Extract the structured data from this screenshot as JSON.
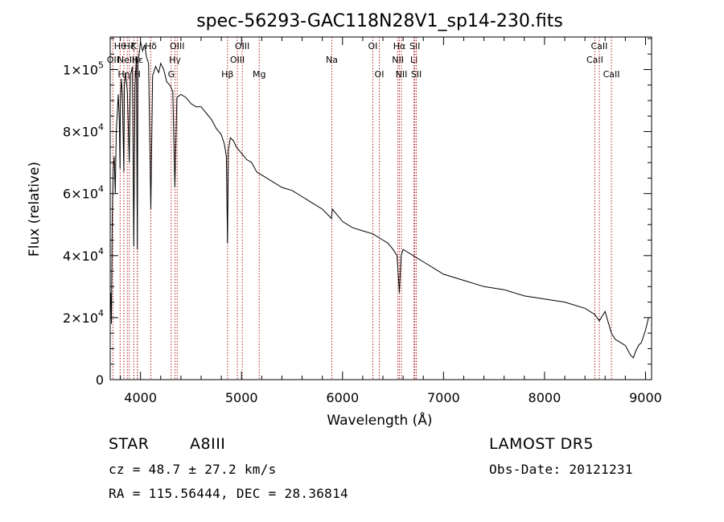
{
  "chart_data": {
    "type": "line",
    "title": "spec-56293-GAC118N28V1_sp14-230.fits",
    "xlabel": "Wavelength (Å)",
    "ylabel": "Flux (relative)",
    "xlim": [
      3700,
      9060
    ],
    "ylim": [
      0,
      110500
    ],
    "xticks": [
      {
        "value": 4000,
        "label": "4000"
      },
      {
        "value": 5000,
        "label": "5000"
      },
      {
        "value": 6000,
        "label": "6000"
      },
      {
        "value": 7000,
        "label": "7000"
      },
      {
        "value": 8000,
        "label": "8000"
      },
      {
        "value": 9000,
        "label": "9000"
      }
    ],
    "yticks": [
      {
        "value": 0,
        "mant": "0",
        "exp": ""
      },
      {
        "value": 20000,
        "mant": "2×10",
        "exp": "4"
      },
      {
        "value": 40000,
        "mant": "4×10",
        "exp": "4"
      },
      {
        "value": 60000,
        "mant": "6×10",
        "exp": "4"
      },
      {
        "value": 80000,
        "mant": "8×10",
        "exp": "4"
      },
      {
        "value": 100000,
        "mant": "1×10",
        "exp": "5"
      }
    ],
    "line_color": "#000000",
    "marker_color": "#b22222",
    "series": [
      {
        "x": [
          3705,
          3712,
          3720,
          3730,
          3740,
          3750,
          3760,
          3770,
          3780,
          3790,
          3797,
          3800,
          3810,
          3820,
          3835,
          3840,
          3850,
          3870,
          3889,
          3900,
          3920,
          3933,
          3945,
          3960,
          3968,
          3975,
          3990,
          4000,
          4020,
          4040,
          4060,
          4080,
          4102,
          4120,
          4150,
          4180,
          4200,
          4230,
          4260,
          4290,
          4320,
          4340,
          4360,
          4400,
          4450,
          4500,
          4550,
          4600,
          4650,
          4700,
          4750,
          4800,
          4830,
          4850,
          4861,
          4870,
          4890,
          4920,
          4950,
          5000,
          5050,
          5100,
          5150,
          5200,
          5300,
          5400,
          5500,
          5600,
          5700,
          5800,
          5890,
          5900,
          6000,
          6100,
          6200,
          6300,
          6400,
          6450,
          6500,
          6540,
          6563,
          6580,
          6600,
          6700,
          6800,
          6900,
          7000,
          7200,
          7400,
          7600,
          7800,
          8000,
          8200,
          8400,
          8498,
          8542,
          8600,
          8662,
          8700,
          8750,
          8800,
          8850,
          8880,
          8900,
          8930,
          8960,
          9000,
          9030
        ],
        "values": [
          28000,
          18000,
          52000,
          68000,
          72000,
          60000,
          80000,
          86000,
          92000,
          84000,
          68000,
          88000,
          97000,
          92000,
          67000,
          95000,
          99000,
          93000,
          70000,
          98000,
          101000,
          43000,
          95000,
          104000,
          42000,
          102000,
          106000,
          109000,
          106000,
          108000,
          104000,
          102000,
          55000,
          98000,
          101000,
          99000,
          102000,
          100000,
          96000,
          95000,
          93000,
          62000,
          91000,
          92000,
          91000,
          89000,
          88000,
          88000,
          86000,
          84000,
          81000,
          79000,
          76000,
          72000,
          44000,
          74000,
          78000,
          77000,
          75000,
          73000,
          71000,
          70000,
          67000,
          66000,
          64000,
          62000,
          61000,
          59000,
          57000,
          55000,
          52000,
          55000,
          51000,
          49000,
          48000,
          47000,
          45000,
          44000,
          42000,
          40000,
          28000,
          40000,
          42000,
          40000,
          38000,
          36000,
          34000,
          32000,
          30000,
          29000,
          27000,
          26000,
          25000,
          23000,
          21000,
          19000,
          22000,
          15000,
          13000,
          12000,
          11000,
          8000,
          7000,
          9000,
          11000,
          12000,
          16000,
          20000
        ]
      }
    ],
    "lines": [
      {
        "x": 3727,
        "label": "OII",
        "row": 2
      },
      {
        "x": 3798,
        "label": "Hθ",
        "row": 1
      },
      {
        "x": 3835,
        "label": "Hη",
        "row": 3
      },
      {
        "x": 3869,
        "label": "NeIII",
        "row": 2
      },
      {
        "x": 3889,
        "label": "Hζ",
        "row": 1
      },
      {
        "x": 3934,
        "label": "K",
        "row": 1
      },
      {
        "x": 3969,
        "label": "H",
        "row": 3
      },
      {
        "x": 3970,
        "label": "Hε",
        "row": 2
      },
      {
        "x": 4102,
        "label": "Hδ",
        "row": 1
      },
      {
        "x": 4304,
        "label": "G",
        "row": 3
      },
      {
        "x": 4341,
        "label": "Hγ",
        "row": 2
      },
      {
        "x": 4363,
        "label": "OIII",
        "row": 1
      },
      {
        "x": 4861,
        "label": "Hβ",
        "row": 3
      },
      {
        "x": 4959,
        "label": "OIII",
        "row": 2
      },
      {
        "x": 5007,
        "label": "OIII",
        "row": 1
      },
      {
        "x": 5175,
        "label": "Mg",
        "row": 3
      },
      {
        "x": 5894,
        "label": "Na",
        "row": 2
      },
      {
        "x": 6300,
        "label": "OI",
        "row": 1
      },
      {
        "x": 6364,
        "label": "OI",
        "row": 3
      },
      {
        "x": 6548,
        "label": "NII",
        "row": 2
      },
      {
        "x": 6563,
        "label": "Hα",
        "row": 1
      },
      {
        "x": 6583,
        "label": "NII",
        "row": 3
      },
      {
        "x": 6707,
        "label": "Li",
        "row": 2
      },
      {
        "x": 6716,
        "label": "SII",
        "row": 1
      },
      {
        "x": 6731,
        "label": "SII",
        "row": 3
      },
      {
        "x": 8498,
        "label": "CaII",
        "row": 2
      },
      {
        "x": 8542,
        "label": "CaII",
        "row": 1
      },
      {
        "x": 8662,
        "label": "CaII",
        "row": 3
      }
    ]
  },
  "info": {
    "class_label": "STAR",
    "subclass": "A8III",
    "survey": "LAMOST DR5",
    "cz": "cz = 48.7 ± 27.2 km/s",
    "obs_date": "Obs-Date: 20121231",
    "coords": "RA = 115.56444, DEC =  28.36814"
  }
}
